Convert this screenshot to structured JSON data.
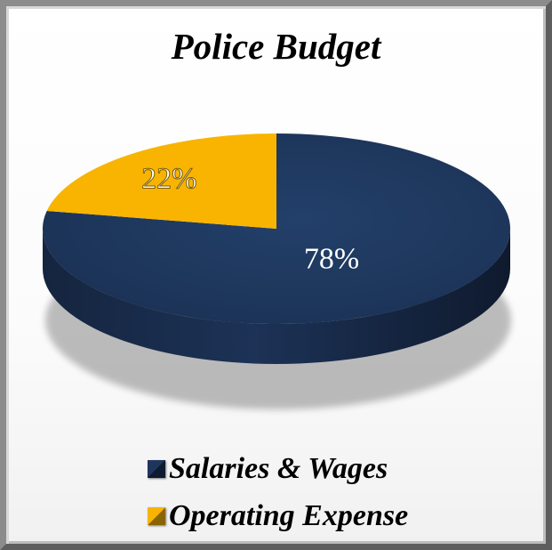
{
  "chart_data": {
    "type": "pie",
    "title": "Police Budget",
    "slices": [
      {
        "name": "Salaries & Wages",
        "value": 78,
        "label": "78%",
        "color": "#1f365c"
      },
      {
        "name": "Operating Expense",
        "value": 22,
        "label": "22%",
        "color": "#f8b400"
      }
    ],
    "legend_position": "bottom"
  }
}
